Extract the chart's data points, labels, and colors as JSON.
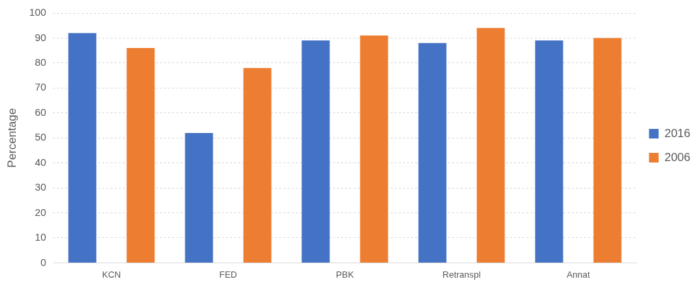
{
  "chart_data": {
    "type": "bar",
    "ylabel": "Percentage",
    "categories": [
      "KCN",
      "FED",
      "PBK",
      "Retranspl",
      "Annat"
    ],
    "series": [
      {
        "name": "2016",
        "color": "#4472c4",
        "values": [
          92,
          52,
          89,
          88,
          89
        ]
      },
      {
        "name": "2006",
        "color": "#ed7d31",
        "values": [
          86,
          78,
          91,
          94,
          90
        ]
      }
    ],
    "ylim": [
      0,
      100
    ],
    "yticks": [
      0,
      10,
      20,
      30,
      40,
      50,
      60,
      70,
      80,
      90,
      100
    ],
    "grid": "y",
    "legend": "right"
  }
}
